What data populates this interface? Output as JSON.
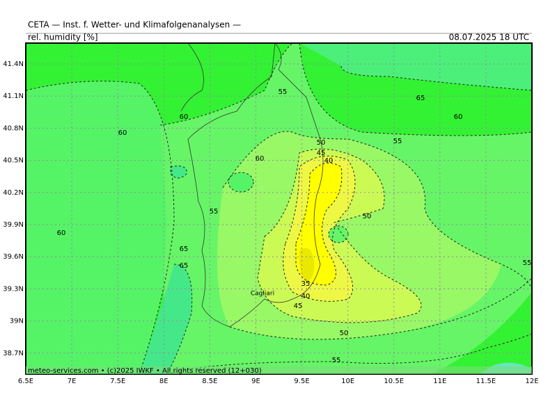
{
  "header": {
    "title": "CETA — Inst. f. Wetter- und Klimafolgenanalysen —",
    "variable": "rel. humidity [%]",
    "valid_time": "08.07.2025 18 UTC"
  },
  "map": {
    "x_axis_labels": [
      "6.5E",
      "7E",
      "7.5E",
      "8E",
      "8.5E",
      "9E",
      "9.5E",
      "10E",
      "10.5E",
      "11E",
      "11.5E",
      "12E"
    ],
    "y_axis_labels": [
      "41.4N",
      "41.1N",
      "40.8N",
      "40.5N",
      "40.2N",
      "39.9N",
      "39.6N",
      "39.3N",
      "39N",
      "38.7N"
    ],
    "contour_labels": [
      "55",
      "65",
      "60",
      "60",
      "60",
      "55",
      "50",
      "45",
      "40",
      "60",
      "55",
      "50",
      "60",
      "65",
      "65",
      "55",
      "35",
      "40",
      "45",
      "50",
      "55"
    ],
    "place_labels": [
      "Cagliari"
    ]
  },
  "footer": {
    "credit": "meteo-services.com • (c)2025 IWKF • All rights reserved (12+030)"
  }
}
